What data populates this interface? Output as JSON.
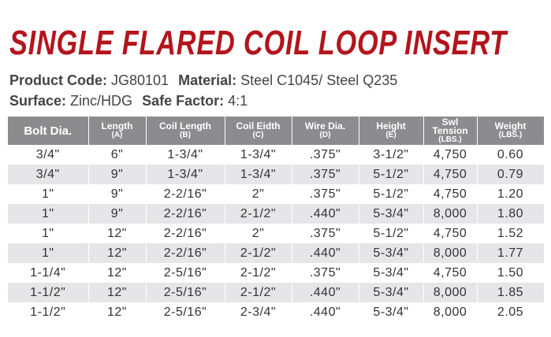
{
  "header": {
    "title": "SINGLE FLARED COIL LOOP INSERT"
  },
  "info": [
    [
      {
        "label": "Product Code:",
        "value": "JG80101"
      },
      {
        "label": "Material:",
        "value": "Steel C1045/ Steel Q235"
      }
    ],
    [
      {
        "label": "Surface:",
        "value": "Zinc/HDG"
      },
      {
        "label": "Safe Factor:",
        "value": "4:1"
      }
    ]
  ],
  "table": {
    "columns": [
      {
        "name": "Bolt Dia."
      },
      {
        "name": "Length",
        "sub": "(A)"
      },
      {
        "name": "Coil Length",
        "sub": "(B)"
      },
      {
        "name": "Coil Eidth",
        "sub": "(C)"
      },
      {
        "name": "Wire Dia.",
        "sub": "(D)"
      },
      {
        "name": "Height",
        "sub": "(E)"
      },
      {
        "name": "Swl Tension",
        "sub": "(LBS.)"
      },
      {
        "name": "Weight",
        "sub": "(LBS.)"
      }
    ],
    "rows": [
      [
        "3/4\"",
        "6\"",
        "1-3/4\"",
        "1-3/4\"",
        ".375\"",
        "3-1/2\"",
        "4,750",
        "0.60"
      ],
      [
        "3/4\"",
        "9\"",
        "1-3/4\"",
        "1-3/4\"",
        ".375\"",
        "5-1/2\"",
        "4,750",
        "0.79"
      ],
      [
        "1\"",
        "9\"",
        "2-2/16\"",
        "2\"",
        ".375\"",
        "5-1/2\"",
        "4,750",
        "1.20"
      ],
      [
        "1\"",
        "9\"",
        "2-2/16\"",
        "2-1/2\"",
        ".440\"",
        "5-3/4\"",
        "8,000",
        "1.80"
      ],
      [
        "1\"",
        "12\"",
        "2-2/16\"",
        "2\"",
        ".375\"",
        "5-1/2\"",
        "4,750",
        "1.52"
      ],
      [
        "1\"",
        "12\"",
        "2-2/16\"",
        "2-1/2\"",
        ".440\"",
        "5-3/4\"",
        "8,000",
        "1.77"
      ],
      [
        "1-1/4\"",
        "12\"",
        "2-5/16\"",
        "2-1/2\"",
        ".375\"",
        "5-3/4\"",
        "4,750",
        "1.50"
      ],
      [
        "1-1/2\"",
        "12\"",
        "2-5/16\"",
        "2-1/2\"",
        ".440\"",
        "5-3/4\"",
        "8,000",
        "1.85"
      ],
      [
        "1-1/2\"",
        "12\"",
        "2-5/16\"",
        "2-3/4\"",
        ".440\"",
        "5-3/4\"",
        "8,000",
        "2.05"
      ]
    ]
  }
}
